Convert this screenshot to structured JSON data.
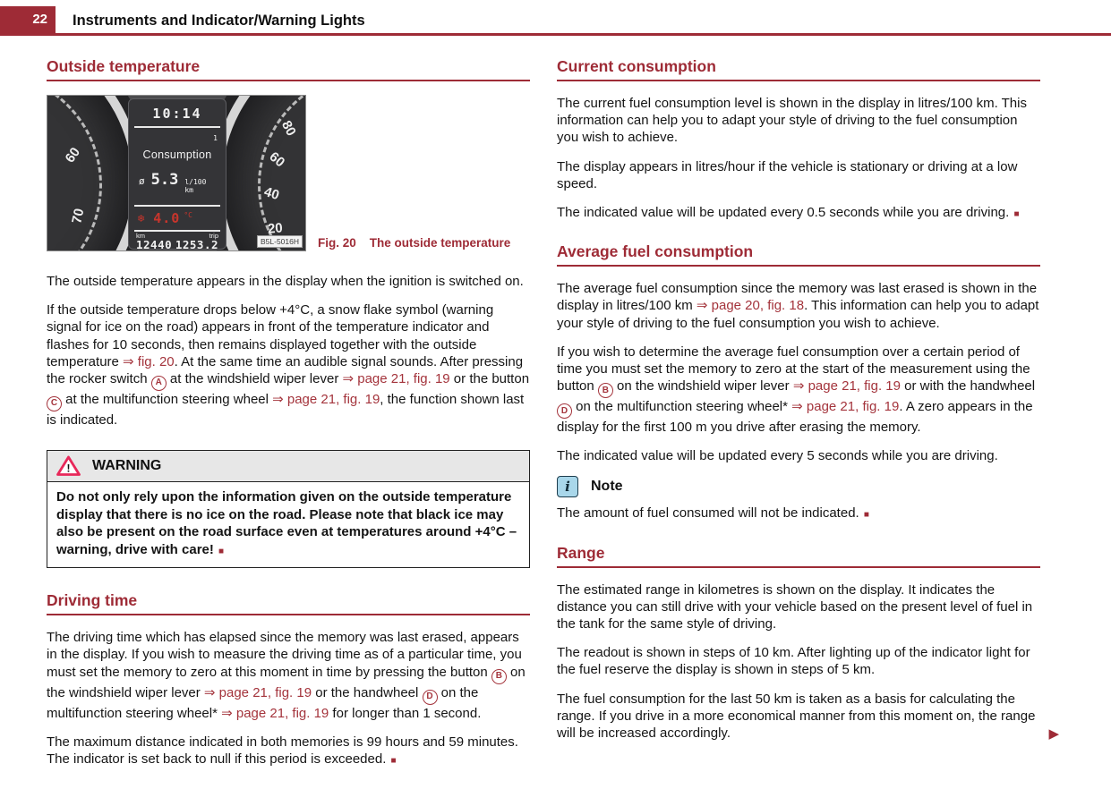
{
  "colors": {
    "brand_red": "#9e2b36",
    "link_red": "#a4343c",
    "warning_triangle_red": "#e8285a",
    "note_blue": "#a9d7ea",
    "lcd_temp_red": "#c8352c"
  },
  "header": {
    "page_number": "22",
    "title": "Instruments and Indicator/Warning Lights"
  },
  "icons": {
    "warning_icon": "!",
    "note_icon": "i",
    "continuation_icon": "▶"
  },
  "left": {
    "outside": {
      "heading": "Outside temperature",
      "figure": {
        "clock": "10:14",
        "display_superscript": "1",
        "display_title": "Consumption",
        "avg_symbol": "ø",
        "consumption_value": "5.3",
        "consumption_unit": "l/100 km",
        "snowflake": "❄",
        "temperature_value": "4.0",
        "temperature_unit": "°C",
        "odometer_label": "km",
        "odometer_value": "12440",
        "trip_label": "trip",
        "trip_value": "1253.2",
        "image_code": "B5L-5016H",
        "left_gauge_numbers": [
          "60",
          "70"
        ],
        "right_gauge_numbers": [
          "80",
          "60",
          "40",
          "20"
        ],
        "caption_fig": "Fig. 20",
        "caption_text": "The outside temperature"
      },
      "paras": [
        [
          {
            "t": "The outside temperature appears in the display when the ignition is switched on."
          }
        ],
        [
          {
            "t": "If the outside temperature drops below +4°C, a snow flake symbol (warning signal for ice on the road) appears in front of the temperature indicator and flashes for 10 seconds, then remains displayed together with the outside temperature "
          },
          {
            "t": "⇒ fig. 20",
            "s": "link"
          },
          {
            "t": ". At the same time an audible signal sounds. After pressing the rocker switch "
          },
          {
            "t": "A",
            "s": "circle"
          },
          {
            "t": " at the windshield wiper lever "
          },
          {
            "t": "⇒ page 21, fig. 19",
            "s": "link"
          },
          {
            "t": " or the button "
          },
          {
            "t": "C",
            "s": "circle"
          },
          {
            "t": " at the multifunction steering wheel "
          },
          {
            "t": "⇒ page 21, fig. 19",
            "s": "link"
          },
          {
            "t": ", the function shown last is indicated."
          }
        ]
      ]
    },
    "warning": {
      "title": "WARNING",
      "body": [
        {
          "t": "Do not only rely upon the information given on the outside temperature display that there is no ice on the road. Please note that black ice may also be present on the road surface even at temperatures around +4°C – warning, drive with care! "
        },
        {
          "t": "■",
          "s": "sq"
        }
      ]
    },
    "driving": {
      "heading": "Driving time",
      "paras": [
        [
          {
            "t": "The driving time which has elapsed since the memory was last erased, appears in the display. If you wish to measure the driving time as of a particular time, you must set the memory to zero at this moment in time by pressing the button "
          },
          {
            "t": "B",
            "s": "circle"
          },
          {
            "t": " on the windshield wiper lever "
          },
          {
            "t": "⇒ page 21, fig. 19",
            "s": "link"
          },
          {
            "t": " or the handwheel "
          },
          {
            "t": "D",
            "s": "circle"
          },
          {
            "t": " on the multifunction steering wheel* "
          },
          {
            "t": "⇒ page 21, fig. 19",
            "s": "link"
          },
          {
            "t": " for longer than 1 second."
          }
        ],
        [
          {
            "t": "The maximum distance indicated in both memories is 99 hours and 59 minutes. The indicator is set back to null if this period is exceeded. "
          },
          {
            "t": "■",
            "s": "sq"
          }
        ]
      ]
    }
  },
  "right": {
    "current": {
      "heading": "Current consumption",
      "paras": [
        [
          {
            "t": "The current fuel consumption level is shown in the display in litres/100 km. This information can help you to adapt your style of driving to the fuel consumption you wish to achieve."
          }
        ],
        [
          {
            "t": "The display appears in litres/hour if the vehicle is stationary or driving at a low speed."
          }
        ],
        [
          {
            "t": "The indicated value will be updated every 0.5 seconds while you are driving. "
          },
          {
            "t": "■",
            "s": "sq"
          }
        ]
      ]
    },
    "average": {
      "heading": "Average fuel consumption",
      "paras": [
        [
          {
            "t": "The average fuel consumption since the memory was last erased is shown in the display in litres/100 km "
          },
          {
            "t": "⇒ page 20, fig. 18",
            "s": "link"
          },
          {
            "t": ". This information can help you to adapt your style of driving to the fuel consumption you wish to achieve."
          }
        ],
        [
          {
            "t": "If you wish to determine the average fuel consumption over a certain period of time you must set the memory to zero at the start of the measurement using the button "
          },
          {
            "t": "B",
            "s": "circle"
          },
          {
            "t": " on the windshield wiper lever "
          },
          {
            "t": "⇒ page 21, fig. 19",
            "s": "link"
          },
          {
            "t": " or with the handwheel "
          },
          {
            "t": "D",
            "s": "circle"
          },
          {
            "t": " on the multifunction steering wheel* "
          },
          {
            "t": "⇒ page 21, fig. 19",
            "s": "link"
          },
          {
            "t": ". A zero appears in the display for the first 100 m you drive after erasing the memory."
          }
        ],
        [
          {
            "t": "The indicated value will be updated every 5 seconds while you are driving."
          }
        ]
      ]
    },
    "note": {
      "title": "Note",
      "body": [
        {
          "t": "The amount of fuel consumed will not be indicated. "
        },
        {
          "t": "■",
          "s": "sq"
        }
      ]
    },
    "range": {
      "heading": "Range",
      "paras": [
        [
          {
            "t": "The estimated range in kilometres is shown on the display. It indicates the distance you can still drive with your vehicle based on the present level of fuel in the tank for the same style of driving."
          }
        ],
        [
          {
            "t": "The readout is shown in steps of 10 km. After lighting up of the indicator light for the fuel reserve the display is shown in steps of 5 km."
          }
        ],
        [
          {
            "t": "The fuel consumption for the last 50 km is taken as a basis for calculating the range. If you drive in a more economical manner from this moment on, the range will be increased accordingly."
          }
        ]
      ]
    }
  }
}
